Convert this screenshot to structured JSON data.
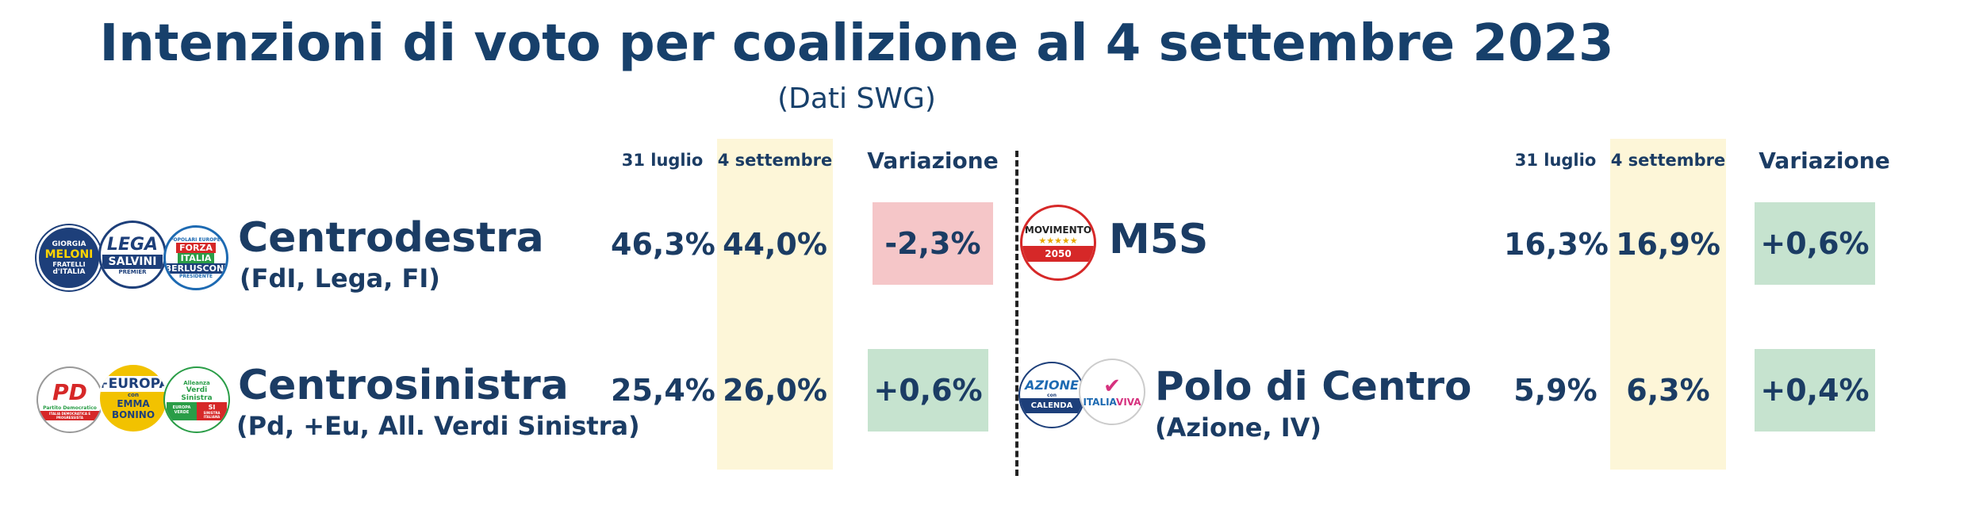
{
  "title": "Intenzioni di voto per coalizione al 4 settembre 2023",
  "subtitle": "(Dati SWG)",
  "headers": {
    "prev": "31 luglio",
    "curr": "4 settembre",
    "change": "Variazione"
  },
  "logos": {
    "fdi": {
      "line1": "GIORGIA",
      "line2": "MELONI",
      "line3": "FRATELLI",
      "line4": "d'ITALIA"
    },
    "lega": {
      "line1": "LEGA",
      "line2": "SALVINI",
      "line3": "PREMIER"
    },
    "fi": {
      "line1": "POPOLARI EUROPEI",
      "line2": "FORZA",
      "line3": "ITALIA",
      "line4": "BERLUSCONI",
      "line5": "PRESIDENTE"
    },
    "pd": {
      "line1": "PD",
      "line2": "Partito Democratico",
      "line3": "ITALIA DEMOCRATICA E PROGRESSISTA"
    },
    "eu": {
      "line1": "+EUROPA",
      "line2": "con",
      "line3": "EMMA",
      "line4": "BONINO"
    },
    "avs": {
      "line1": "Alleanza",
      "line2": "Verdi",
      "line3": "Sinistra",
      "line4": "EUROPA VERDE",
      "line5": "SI",
      "line6": "SINISTRA ITALIANA"
    },
    "m5s": {
      "line1": "MOVIMENTO",
      "line2": "★★★★★",
      "line3": "2050"
    },
    "azione": {
      "line1": "AZIONE",
      "line2": "con",
      "line3": "CALENDA"
    },
    "iv": {
      "line1": "ITALIA",
      "line2": "VIVA"
    }
  },
  "chart_data": {
    "type": "table",
    "title": "Intenzioni di voto per coalizione al 4 settembre 2023",
    "columns": [
      "31 luglio",
      "4 settembre",
      "Variazione"
    ],
    "rows": [
      {
        "name": "Centrodestra",
        "sub": "(FdI, Lega, FI)",
        "prev": "46,3%",
        "curr": "44,0%",
        "change": "-2,3%",
        "change_value": -2.3
      },
      {
        "name": "Centrosinistra",
        "sub": "(Pd, +Eu, All. Verdi Sinistra)",
        "prev": "25,4%",
        "curr": "26,0%",
        "change": "+0,6%",
        "change_value": 0.6
      },
      {
        "name": "M5S",
        "sub": "",
        "prev": "16,3%",
        "curr": "16,9%",
        "change": "+0,6%",
        "change_value": 0.6
      },
      {
        "name": "Polo di Centro",
        "sub": "(Azione, IV)",
        "prev": "5,9%",
        "curr": "6,3%",
        "change": "+0,4%",
        "change_value": 0.4
      }
    ],
    "colors": {
      "negative": "#f5c6c8",
      "positive": "#c6e3cf",
      "highlight": "#fdf6d8",
      "text": "#17406b"
    }
  }
}
